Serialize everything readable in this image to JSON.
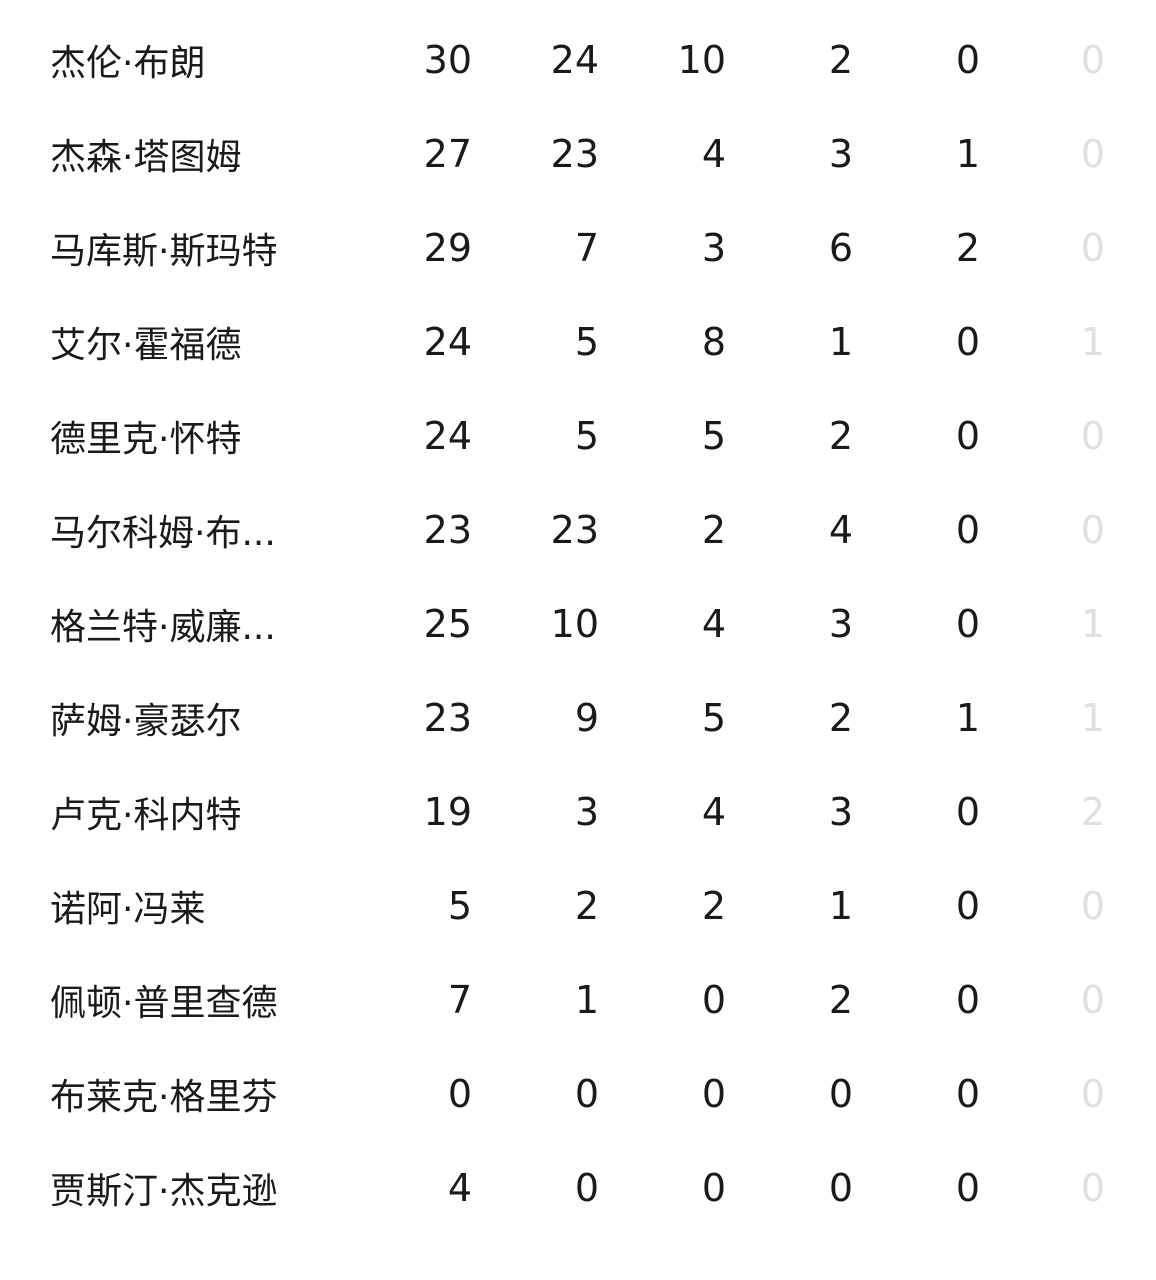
{
  "players": [
    {
      "name": "杰伦·布朗",
      "stats": [
        "30",
        "24",
        "10",
        "2",
        "0",
        "0"
      ]
    },
    {
      "name": "杰森·塔图姆",
      "stats": [
        "27",
        "23",
        "4",
        "3",
        "1",
        "0"
      ]
    },
    {
      "name": "马库斯·斯玛特",
      "stats": [
        "29",
        "7",
        "3",
        "6",
        "2",
        "0"
      ]
    },
    {
      "name": "艾尔·霍福德",
      "stats": [
        "24",
        "5",
        "8",
        "1",
        "0",
        "1"
      ]
    },
    {
      "name": "德里克·怀特",
      "stats": [
        "24",
        "5",
        "5",
        "2",
        "0",
        "0"
      ]
    },
    {
      "name": "马尔科姆·布...",
      "stats": [
        "23",
        "23",
        "2",
        "4",
        "0",
        "0"
      ]
    },
    {
      "name": "格兰特·威廉...",
      "stats": [
        "25",
        "10",
        "4",
        "3",
        "0",
        "1"
      ]
    },
    {
      "name": "萨姆·豪瑟尔",
      "stats": [
        "23",
        "9",
        "5",
        "2",
        "1",
        "1"
      ]
    },
    {
      "name": "卢克·科内特",
      "stats": [
        "19",
        "3",
        "4",
        "3",
        "0",
        "2"
      ]
    },
    {
      "name": "诺阿·冯莱",
      "stats": [
        "5",
        "2",
        "2",
        "1",
        "0",
        "0"
      ]
    },
    {
      "name": "佩顿·普里查德",
      "stats": [
        "7",
        "1",
        "0",
        "2",
        "0",
        "0"
      ]
    },
    {
      "name": "布莱克·格里芬",
      "stats": [
        "0",
        "0",
        "0",
        "0",
        "0",
        "0"
      ]
    },
    {
      "name": "贾斯汀·杰克逊",
      "stats": [
        "4",
        "0",
        "0",
        "0",
        "0",
        "0"
      ]
    }
  ]
}
